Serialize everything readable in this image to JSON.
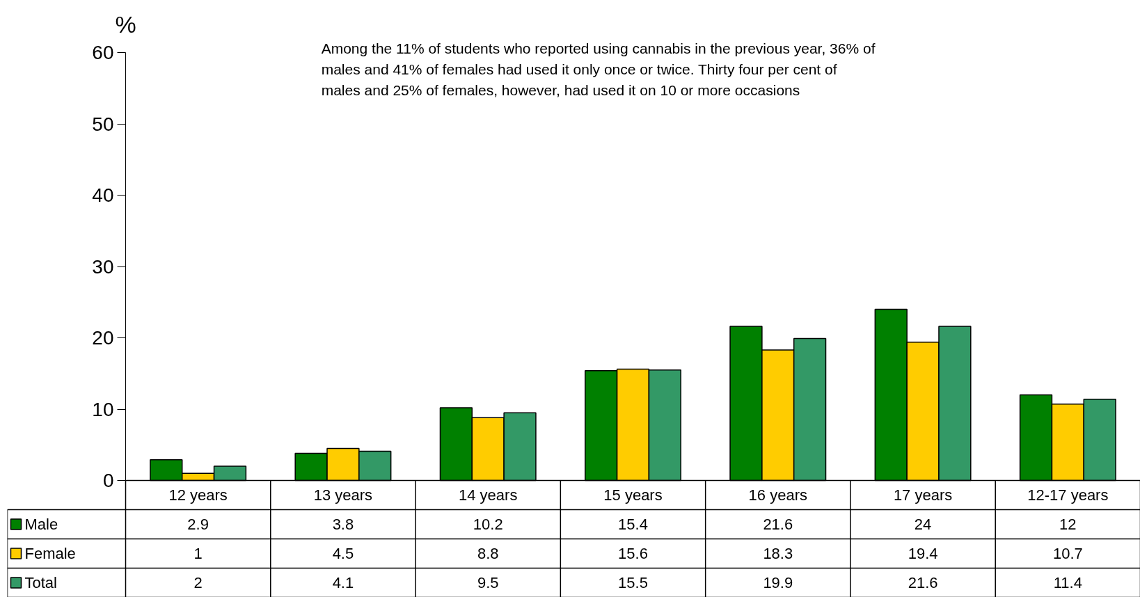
{
  "chart_data": {
    "type": "bar",
    "ylabel": "%",
    "annotations": [
      "Among the 11% of students who reported using cannabis in the previous year, 36% of males and 41% of females had used it only once or twice. Thirty four per cent of males and 25% of females, however, had used it on 10 or more occasions"
    ],
    "categories": [
      "12 years",
      "13 years",
      "14 years",
      "15 years",
      "16 years",
      "17 years",
      "12-17 years"
    ],
    "series": [
      {
        "name": "Male",
        "color": "#008000",
        "values": [
          2.9,
          3.8,
          10.2,
          15.4,
          21.6,
          24,
          12
        ]
      },
      {
        "name": "Female",
        "color": "#ffcc00",
        "values": [
          1,
          4.5,
          8.8,
          15.6,
          18.3,
          19.4,
          10.7
        ]
      },
      {
        "name": "Total",
        "color": "#339966",
        "values": [
          2,
          4.1,
          9.5,
          15.5,
          19.9,
          21.6,
          11.4
        ]
      }
    ],
    "ylim": [
      0,
      60
    ],
    "yticks": [
      0,
      10,
      20,
      30,
      40,
      50,
      60
    ],
    "grid": false,
    "legend": "bottom left",
    "data_labels": true
  }
}
